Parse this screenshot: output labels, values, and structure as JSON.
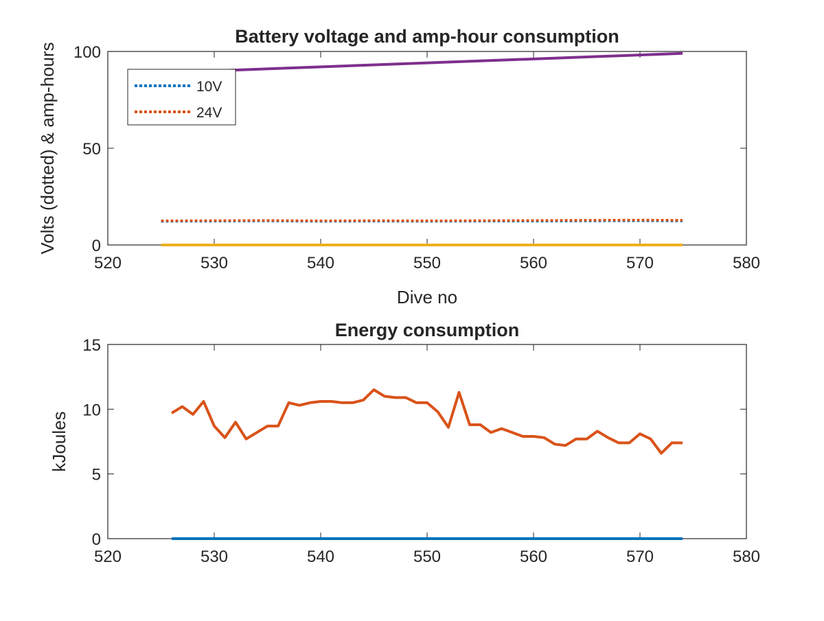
{
  "chart_data": [
    {
      "type": "line",
      "title": "Battery voltage and amp-hour consumption",
      "xlabel": "Dive no",
      "ylabel": "Volts (dotted) & amp-hours",
      "xlim": [
        520,
        580
      ],
      "ylim": [
        0,
        100
      ],
      "xticks": [
        "520",
        "530",
        "540",
        "550",
        "560",
        "570",
        "580"
      ],
      "yticks": [
        "0",
        "50",
        "100"
      ],
      "legend": {
        "placement": "top-left",
        "entries": [
          "10V",
          "24V"
        ]
      },
      "series": [
        {
          "name": "10V",
          "style": "dotted",
          "color": "#0072BD",
          "x": [
            525,
            530,
            535,
            540,
            545,
            550,
            555,
            560,
            565,
            570,
            574
          ],
          "y": [
            12.2,
            12.3,
            12.4,
            12.2,
            12.3,
            12.2,
            12.3,
            12.3,
            12.4,
            12.5,
            12.4
          ]
        },
        {
          "name": "24V",
          "style": "dotted",
          "color": "#D95319",
          "x": [
            525,
            530,
            535,
            540,
            545,
            550,
            555,
            560,
            565,
            570,
            574
          ],
          "y": [
            12.5,
            12.6,
            12.7,
            12.5,
            12.6,
            12.5,
            12.6,
            12.7,
            12.8,
            12.9,
            12.8
          ]
        },
        {
          "style": "solid",
          "color": "#7E2F8E",
          "x": [
            530,
            574
          ],
          "y": [
            90,
            99
          ]
        },
        {
          "style": "solid",
          "color": "#EDB120",
          "x": [
            525,
            574
          ],
          "y": [
            0,
            0
          ]
        }
      ]
    },
    {
      "type": "line",
      "title": "Energy consumption",
      "xlabel": "",
      "ylabel": "kJoules",
      "xlim": [
        520,
        580
      ],
      "ylim": [
        0,
        15
      ],
      "xticks": [
        "520",
        "530",
        "540",
        "550",
        "560",
        "570",
        "580"
      ],
      "yticks": [
        "0",
        "5",
        "10",
        "15"
      ],
      "series": [
        {
          "style": "solid",
          "color": "#D95319",
          "x": [
            526,
            527,
            528,
            529,
            530,
            531,
            532,
            533,
            534,
            535,
            536,
            537,
            538,
            539,
            540,
            541,
            542,
            543,
            544,
            545,
            546,
            547,
            548,
            549,
            550,
            551,
            552,
            553,
            554,
            555,
            556,
            557,
            558,
            559,
            560,
            561,
            562,
            563,
            564,
            565,
            566,
            567,
            568,
            569,
            570,
            571,
            572,
            573,
            574
          ],
          "y": [
            9.7,
            10.2,
            9.6,
            10.6,
            8.7,
            7.8,
            9.0,
            7.7,
            8.2,
            8.7,
            8.7,
            10.5,
            10.3,
            10.5,
            10.6,
            10.6,
            10.5,
            10.5,
            10.7,
            11.5,
            11.0,
            10.9,
            10.9,
            10.5,
            10.5,
            9.8,
            8.6,
            11.3,
            8.8,
            8.8,
            8.2,
            8.5,
            8.2,
            7.9,
            7.9,
            7.8,
            7.3,
            7.2,
            7.7,
            7.7,
            8.3,
            7.8,
            7.4,
            7.4,
            8.1,
            7.7,
            6.6,
            7.4,
            7.4
          ]
        },
        {
          "style": "solid",
          "color": "#0072BD",
          "x": [
            526,
            574
          ],
          "y": [
            0,
            0
          ]
        }
      ]
    }
  ]
}
